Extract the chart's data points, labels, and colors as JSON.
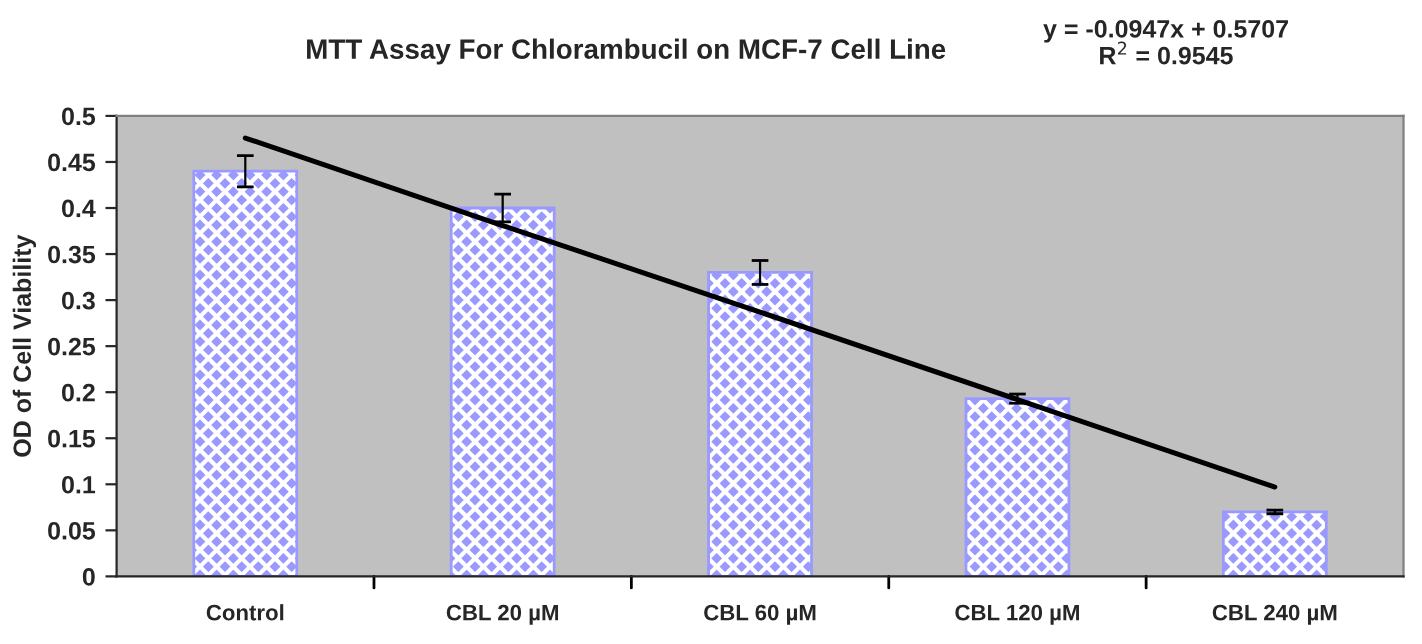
{
  "chart_data": {
    "type": "bar",
    "title": "MTT Assay For Chlorambucil on MCF-7 Cell Line",
    "ylabel": "OD of Cell Viability",
    "categories": [
      "Control",
      "CBL 20 µM",
      "CBL 60 µM",
      "CBL 120 µM",
      "CBL 240 µM"
    ],
    "series": [
      {
        "color": "#9999ff",
        "values": [
          0.44,
          0.4,
          0.33,
          0.193,
          0.07
        ],
        "errors": [
          0.017,
          0.015,
          0.013,
          0.005,
          0.002
        ]
      },
      {
        "type": "line",
        "color": "#000000",
        "values": [
          0.476,
          0.381,
          0.287,
          0.192,
          0.097
        ]
      }
    ],
    "ylim": [
      0,
      0.5
    ],
    "yticks": [
      0,
      0.05,
      0.1,
      0.15,
      0.2,
      0.25,
      0.3,
      0.35,
      0.4,
      0.45,
      0.5
    ],
    "grid": false,
    "legend": false,
    "annotations": [
      "y = -0.0947x + 0.5707\nR$^{2}$ = 0.9545"
    ]
  }
}
